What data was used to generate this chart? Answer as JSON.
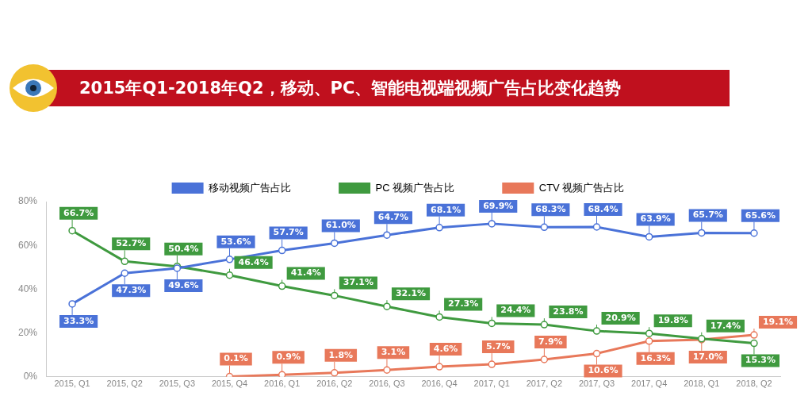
{
  "chart_data": {
    "type": "line",
    "title": "2015年Q1-2018年Q2，移动、PC、智能电视端视频广告占比变化趋势",
    "categories": [
      "2015, Q1",
      "2015, Q2",
      "2015, Q3",
      "2015, Q4",
      "2016, Q1",
      "2016, Q2",
      "2016, Q3",
      "2016, Q4",
      "2017, Q1",
      "2017, Q2",
      "2017, Q3",
      "2017, Q4",
      "2018, Q1",
      "2018, Q2"
    ],
    "series": [
      {
        "name": "移动视频广告占比",
        "color": "#4a72d8",
        "values": [
          33.3,
          47.3,
          49.6,
          53.6,
          57.7,
          61.0,
          64.7,
          68.1,
          69.9,
          68.3,
          68.4,
          63.9,
          65.7,
          65.6
        ],
        "value_labels": [
          "33.3%",
          "47.3%",
          "49.6%",
          "53.6%",
          "57.7%",
          "61.0%",
          "64.7%",
          "68.1%",
          "69.9%",
          "68.3%",
          "68.4%",
          "63.9%",
          "65.7%",
          "65.6%"
        ]
      },
      {
        "name": "PC 视频广告占比",
        "color": "#3f9a3f",
        "values": [
          66.7,
          52.7,
          50.4,
          46.4,
          41.4,
          37.1,
          32.1,
          27.3,
          24.4,
          23.8,
          20.9,
          19.8,
          17.4,
          15.3
        ],
        "value_labels": [
          "66.7%",
          "52.7%",
          "50.4%",
          "46.4%",
          "41.4%",
          "37.1%",
          "32.1%",
          "27.3%",
          "24.4%",
          "23.8%",
          "20.9%",
          "19.8%",
          "17.4%",
          "15.3%"
        ]
      },
      {
        "name": "CTV 视频广告占比",
        "color": "#e8785a",
        "values": [
          null,
          null,
          null,
          0.1,
          0.9,
          1.8,
          3.1,
          4.6,
          5.7,
          7.9,
          10.6,
          16.3,
          17.0,
          19.1
        ],
        "value_labels": [
          null,
          null,
          null,
          "0.1%",
          "0.9%",
          "1.8%",
          "3.1%",
          "4.6%",
          "5.7%",
          "7.9%",
          "10.6%",
          "16.3%",
          "17.0%",
          "19.1%"
        ]
      }
    ],
    "ylim": [
      0,
      80
    ],
    "yticks": [
      {
        "value": 0,
        "label": "0%"
      },
      {
        "value": 20,
        "label": "20%"
      },
      {
        "value": 40,
        "label": "40%"
      },
      {
        "value": 60,
        "label": "60%"
      },
      {
        "value": 80,
        "label": "80%"
      }
    ],
    "grid": false,
    "legend": "top",
    "marker": "circle",
    "line_style": "solid"
  }
}
